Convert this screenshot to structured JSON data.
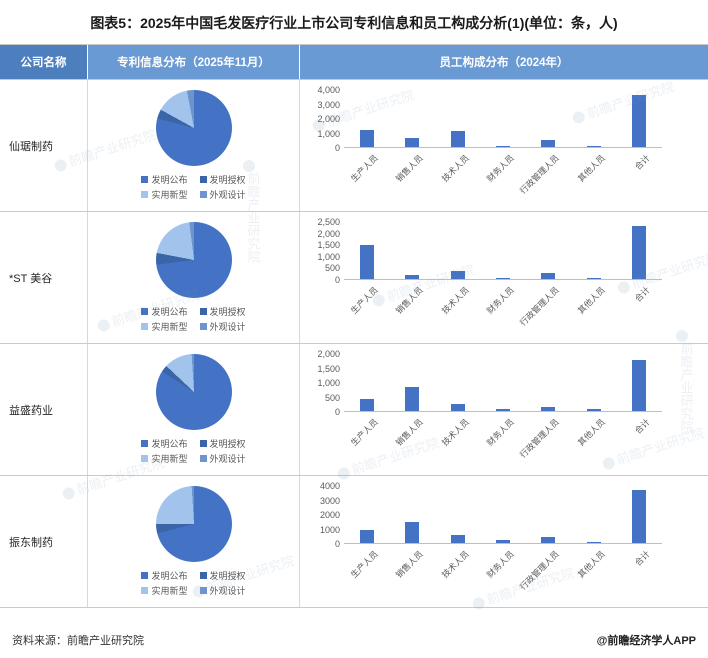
{
  "title": "图表5：2025年中国毛发医疗行业上市公司专利信息和员工构成分析(1)(单位：条，人)",
  "table": {
    "headers": [
      "公司名称",
      "专利信息分布（2025年11月）",
      "员工构成分布（2024年）"
    ]
  },
  "patent_legend": [
    {
      "label": "发明公布",
      "color": "#4472c4"
    },
    {
      "label": "发明授权",
      "color": "#3a66a8"
    },
    {
      "label": "实用新型",
      "color": "#a2c4ec"
    },
    {
      "label": "外观设计",
      "color": "#6e94ce"
    }
  ],
  "bar_categories": [
    "生产人员",
    "销售人员",
    "技术人员",
    "财务人员",
    "行政管理人员",
    "其他人员",
    "合计"
  ],
  "bar_color": "#4472c4",
  "rows": [
    {
      "company": "仙琚制药",
      "pie": {
        "values": [
          79,
          4,
          14,
          3
        ]
      },
      "bar": {
        "max": 4000,
        "ticks": [
          "4,000",
          "3,000",
          "2,000",
          "1,000",
          "0"
        ],
        "values": [
          1200,
          650,
          1100,
          100,
          500,
          50,
          3600
        ]
      }
    },
    {
      "company": "*ST 美谷",
      "pie": {
        "values": [
          73,
          5,
          20,
          2
        ]
      },
      "bar": {
        "max": 2500,
        "ticks": [
          "2,500",
          "2,000",
          "1,500",
          "1,000",
          "500",
          "0"
        ],
        "values": [
          1450,
          180,
          330,
          60,
          250,
          30,
          2300
        ]
      }
    },
    {
      "company": "益盛药业",
      "pie": {
        "values": [
          84,
          3,
          12,
          1
        ]
      },
      "bar": {
        "max": 2000,
        "ticks": [
          "2,000",
          "1,500",
          "1,000",
          "500",
          "0"
        ],
        "values": [
          400,
          820,
          240,
          60,
          150,
          80,
          1750
        ]
      }
    },
    {
      "company": "振东制药",
      "pie": {
        "values": [
          71,
          4,
          24,
          1
        ]
      },
      "bar": {
        "max": 4000,
        "ticks": [
          "4000",
          "3000",
          "2000",
          "1000",
          "0"
        ],
        "values": [
          900,
          1450,
          550,
          200,
          450,
          100,
          3650
        ]
      }
    }
  ],
  "footer": {
    "source": "资料来源：前瞻产业研究院",
    "credit": "@前瞻经济学人APP"
  },
  "watermark": {
    "text": "前瞻产业研究院"
  },
  "chart_data": [
    {
      "type": "pie",
      "company": "仙琚制药",
      "title": "专利信息分布（2025年11月）",
      "labels": [
        "发明公布",
        "发明授权",
        "实用新型",
        "外观设计"
      ],
      "values": [
        79,
        4,
        14,
        3
      ]
    },
    {
      "type": "bar",
      "company": "仙琚制药",
      "title": "员工构成分布（2024年）",
      "categories": [
        "生产人员",
        "销售人员",
        "技术人员",
        "财务人员",
        "行政管理人员",
        "其他人员",
        "合计"
      ],
      "values": [
        1200,
        650,
        1100,
        100,
        500,
        50,
        3600
      ],
      "ylim": [
        0,
        4000
      ]
    },
    {
      "type": "pie",
      "company": "*ST 美谷",
      "title": "专利信息分布（2025年11月）",
      "labels": [
        "发明公布",
        "发明授权",
        "实用新型",
        "外观设计"
      ],
      "values": [
        73,
        5,
        20,
        2
      ]
    },
    {
      "type": "bar",
      "company": "*ST 美谷",
      "title": "员工构成分布（2024年）",
      "categories": [
        "生产人员",
        "销售人员",
        "技术人员",
        "财务人员",
        "行政管理人员",
        "其他人员",
        "合计"
      ],
      "values": [
        1450,
        180,
        330,
        60,
        250,
        30,
        2300
      ],
      "ylim": [
        0,
        2500
      ]
    },
    {
      "type": "pie",
      "company": "益盛药业",
      "title": "专利信息分布（2025年11月）",
      "labels": [
        "发明公布",
        "发明授权",
        "实用新型",
        "外观设计"
      ],
      "values": [
        84,
        3,
        12,
        1
      ]
    },
    {
      "type": "bar",
      "company": "益盛药业",
      "title": "员工构成分布（2024年）",
      "categories": [
        "生产人员",
        "销售人员",
        "技术人员",
        "财务人员",
        "行政管理人员",
        "其他人员",
        "合计"
      ],
      "values": [
        400,
        820,
        240,
        60,
        150,
        80,
        1750
      ],
      "ylim": [
        0,
        2000
      ]
    },
    {
      "type": "pie",
      "company": "振东制药",
      "title": "专利信息分布（2025年11月）",
      "labels": [
        "发明公布",
        "发明授权",
        "实用新型",
        "外观设计"
      ],
      "values": [
        71,
        4,
        24,
        1
      ]
    },
    {
      "type": "bar",
      "company": "振东制药",
      "title": "员工构成分布（2024年）",
      "categories": [
        "生产人员",
        "销售人员",
        "技术人员",
        "财务人员",
        "行政管理人员",
        "其他人员",
        "合计"
      ],
      "values": [
        900,
        1450,
        550,
        200,
        450,
        100,
        3650
      ],
      "ylim": [
        0,
        4000
      ]
    }
  ]
}
